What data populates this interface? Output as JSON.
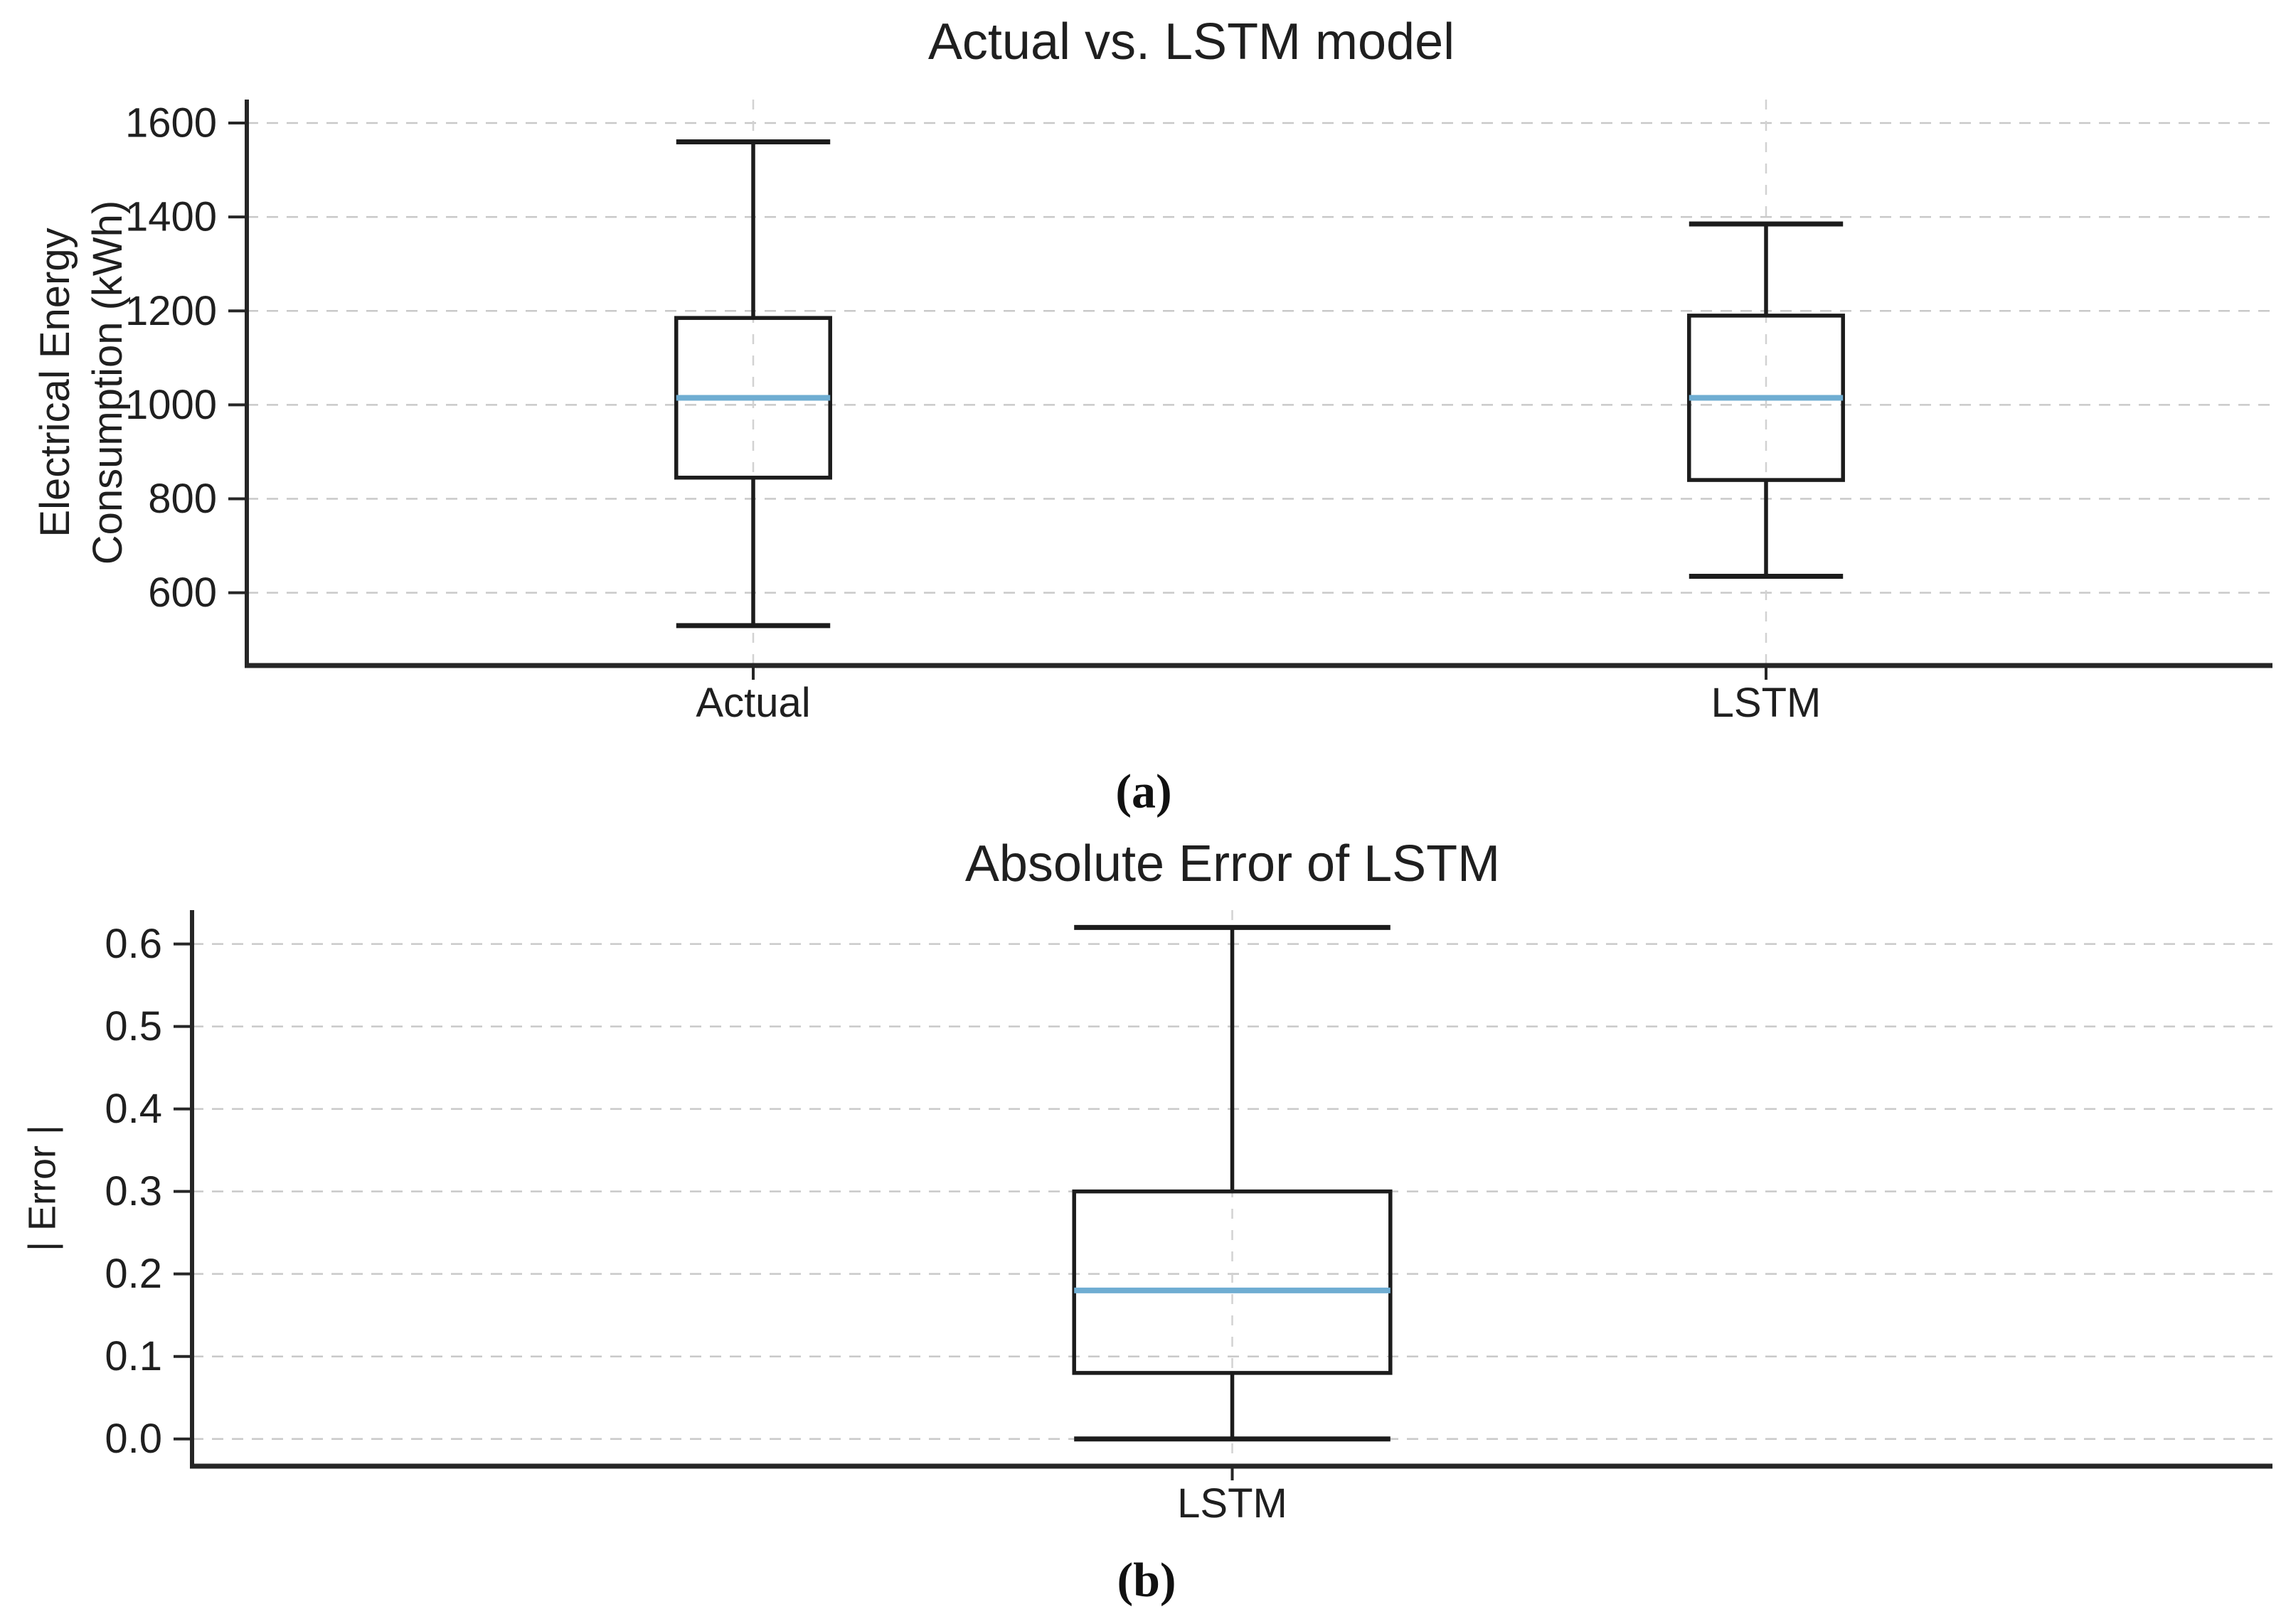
{
  "panel_labels": [
    "(a)",
    "(b)"
  ],
  "colors": {
    "median_line": "#6fadd2",
    "box_line": "#1c1c1c",
    "grid_line": "#c9c9c9",
    "category_grid_line": "#d2d2d2",
    "axis_line": "#262626",
    "text": "#1f1f1f",
    "background": "#ffffff"
  },
  "chart_data": [
    {
      "id": "a",
      "type": "boxplot",
      "title": "Actual vs. LSTM model",
      "ylabel": "Electrical Energy\nConsumption (kWh)",
      "categories": [
        "Actual",
        "LSTM"
      ],
      "ylim": [
        445,
        1650
      ],
      "ytick_values": [
        600,
        800,
        1000,
        1200,
        1400,
        1600
      ],
      "ytick_labels": [
        "600",
        "800",
        "1000",
        "1200",
        "1400",
        "1600"
      ],
      "grid": "dashed",
      "legend": "none",
      "box_width_frac": 0.152,
      "series": [
        {
          "category": "Actual",
          "whisker_low": 530,
          "q1": 845,
          "median": 1015,
          "q3": 1185,
          "whisker_high": 1560,
          "outliers": []
        },
        {
          "category": "LSTM",
          "whisker_low": 635,
          "q1": 840,
          "median": 1015,
          "q3": 1190,
          "whisker_high": 1385,
          "outliers": []
        }
      ]
    },
    {
      "id": "b",
      "type": "boxplot",
      "title": "Absolute Error of LSTM",
      "ylabel": "| Error |",
      "categories": [
        "LSTM"
      ],
      "ylim": [
        -0.033,
        0.641
      ],
      "ytick_values": [
        0.0,
        0.1,
        0.2,
        0.3,
        0.4,
        0.5,
        0.6
      ],
      "ytick_labels": [
        "0.0",
        "0.1",
        "0.2",
        "0.3",
        "0.4",
        "0.5",
        "0.6"
      ],
      "grid": "dashed",
      "legend": "none",
      "box_width_frac": 0.152,
      "series": [
        {
          "category": "LSTM",
          "whisker_low": 0.0,
          "q1": 0.08,
          "median": 0.18,
          "q3": 0.3,
          "whisker_high": 0.62,
          "outliers": []
        }
      ]
    }
  ]
}
